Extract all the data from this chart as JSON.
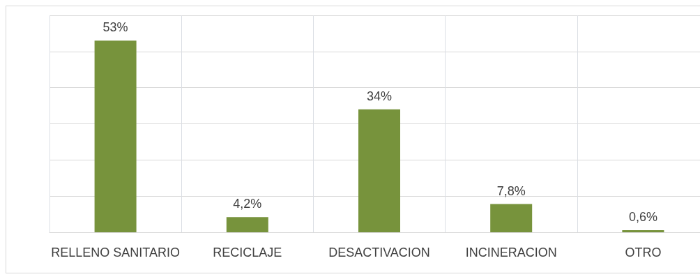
{
  "chart_data": {
    "type": "bar",
    "categories": [
      "RELLENO SANITARIO",
      "RECICLAJE",
      "DESACTIVACION",
      "INCINERACION",
      "OTRO"
    ],
    "values": [
      53,
      4.2,
      34,
      7.8,
      0.6
    ],
    "value_labels": [
      "53%",
      "4,2%",
      "34%",
      "7,8%",
      "0,6%"
    ],
    "color": "#77933c",
    "ylim": [
      0,
      60
    ],
    "yticks": [
      {
        "value": 0,
        "label": null
      },
      {
        "value": 10,
        "label": null
      },
      {
        "value": 20,
        "label": null
      },
      {
        "value": 30,
        "label": null
      },
      {
        "value": 40,
        "label": null
      },
      {
        "value": 50,
        "label": null
      },
      {
        "value": 60,
        "label": null
      }
    ],
    "grid": true,
    "tick_labels": "x"
  }
}
